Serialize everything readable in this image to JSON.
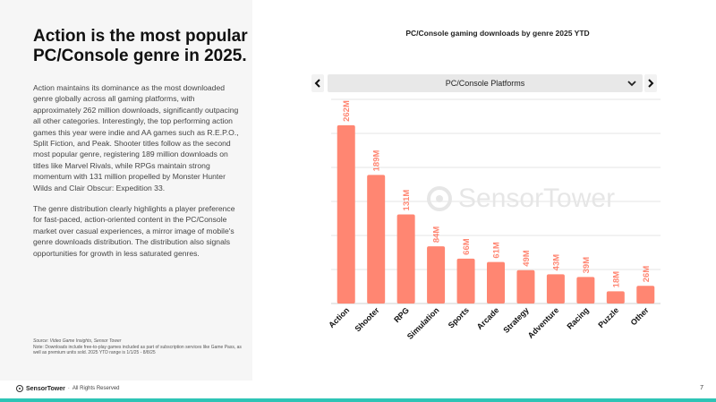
{
  "slide": {
    "headline": "Action is the most popular PC/Console genre in 2025.",
    "paragraphs": [
      "Action maintains its dominance as the most downloaded genre globally across all gaming platforms, with approximately 262 million downloads, significantly outpacing all other categories. Interestingly, the top performing action games this year were indie and AA games such as R.E.P.O., Split Fiction, and Peak. Shooter titles follow as the second most popular genre, registering 189 million downloads on titles like Marvel Rivals, while RPGs maintain strong momentum with 131 million propelled by Monster Hunter Wilds and Clair Obscur: Expedition 33.",
      "The genre distribution clearly highlights a player preference for fast-paced, action-oriented content in the PC/Console market over casual experiences, a mirror image of mobile's genre downloads distribution. The distribution also signals opportunities for growth in less saturated genres."
    ],
    "source": "Source: Video Game Insights, Sensor Tower",
    "note": "Note: Downloads include free-to-play games included as part of subscription services like Game Pass, as well as premium units sold. 2025 YTD range is 1/1/25 - 8/8/25",
    "footer_brand": "SensorTower",
    "footer_rights": "All Rights Reserved",
    "page_number": "7",
    "watermark": "SensorTower"
  },
  "selector": {
    "label": "PC/Console Platforms",
    "prev_icon": "chevron-left-icon",
    "next_icon": "chevron-right-icon",
    "dropdown_icon": "chevron-down-icon"
  },
  "colors": {
    "bar": "#ff8672",
    "label": "#ff8672",
    "gridline": "#e6e6e6",
    "accent": "#2ec4b6"
  },
  "chart_data": {
    "type": "bar",
    "title": "PC/Console gaming downloads by genre 2025 YTD",
    "categories": [
      "Action",
      "Shooter",
      "RPG",
      "Simulation",
      "Sports",
      "Arcade",
      "Strategy",
      "Adventure",
      "Racing",
      "Puzzle",
      "Other"
    ],
    "values": [
      262,
      189,
      131,
      84,
      66,
      61,
      49,
      43,
      39,
      18,
      26
    ],
    "data_labels": [
      "262M",
      "189M",
      "131M",
      "84M",
      "66M",
      "61M",
      "49M",
      "43M",
      "39M",
      "18M",
      "26M"
    ],
    "unit": "M",
    "ylim": [
      0,
      300
    ],
    "gridlines": true,
    "legend": "none"
  }
}
